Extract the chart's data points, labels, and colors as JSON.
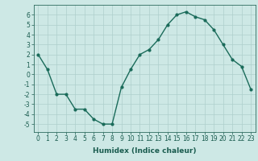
{
  "x": [
    0,
    1,
    2,
    3,
    4,
    5,
    6,
    7,
    8,
    9,
    10,
    11,
    12,
    13,
    14,
    15,
    16,
    17,
    18,
    19,
    20,
    21,
    22,
    23
  ],
  "y": [
    2.0,
    0.5,
    -2.0,
    -2.0,
    -3.5,
    -3.5,
    -4.5,
    -5.0,
    -5.0,
    -1.3,
    0.5,
    2.0,
    2.5,
    3.5,
    5.0,
    6.0,
    6.3,
    5.8,
    5.5,
    4.5,
    3.0,
    1.5,
    0.8,
    -1.5
  ],
  "line_color": "#1a6b5a",
  "marker": "o",
  "marker_size": 2,
  "linewidth": 1.0,
  "xlabel": "Humidex (Indice chaleur)",
  "xlim": [
    -0.5,
    23.5
  ],
  "ylim": [
    -5.8,
    7.0
  ],
  "yticks": [
    -5,
    -4,
    -3,
    -2,
    -1,
    0,
    1,
    2,
    3,
    4,
    5,
    6
  ],
  "xticks": [
    0,
    1,
    2,
    3,
    4,
    5,
    6,
    7,
    8,
    9,
    10,
    11,
    12,
    13,
    14,
    15,
    16,
    17,
    18,
    19,
    20,
    21,
    22,
    23
  ],
  "bg_color": "#cde8e5",
  "grid_color": "#aecfcc",
  "axes_color": "#2d6b5e",
  "tick_color": "#1a5c4f",
  "xlabel_fontsize": 6.5,
  "tick_fontsize": 5.5
}
